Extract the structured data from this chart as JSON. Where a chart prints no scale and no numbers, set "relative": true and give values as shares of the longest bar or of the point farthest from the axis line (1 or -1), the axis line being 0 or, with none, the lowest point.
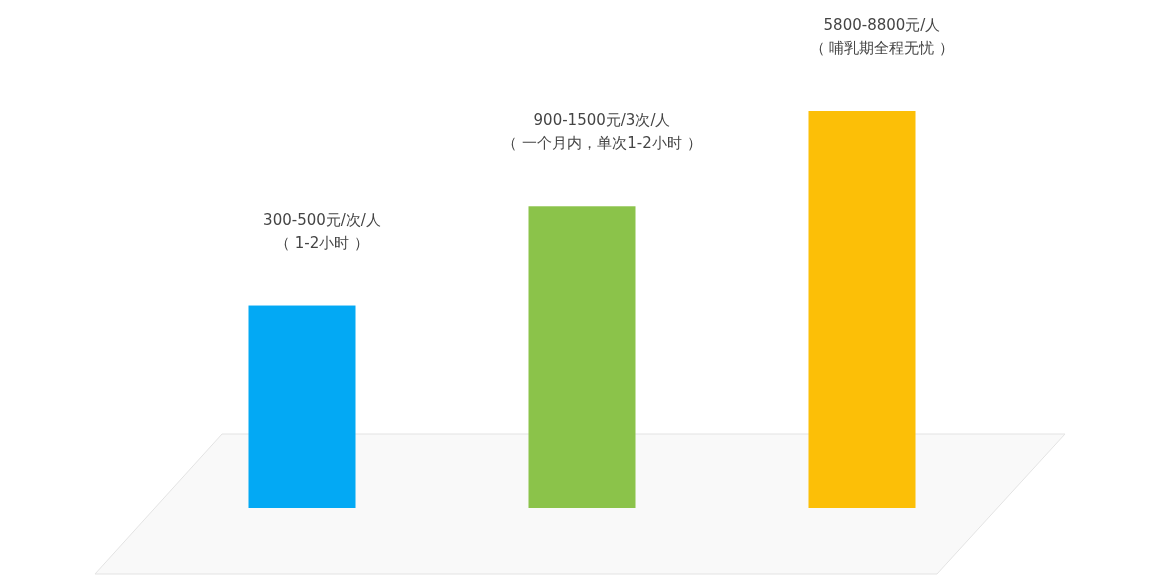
{
  "chart_data": {
    "type": "bar",
    "relative": true,
    "categories": [
      null,
      null,
      null
    ],
    "values": [
      0.51,
      0.76,
      1
    ],
    "colors": [
      "#03a9f4",
      "#8bc34a",
      "#fcbf07"
    ],
    "annotations": [
      "300-500元/次/人",
      "（ 1-2小时 ）",
      "900-1500元/3次/人",
      "（ 一个月内，单次1-2小时 ）",
      "5800-8800元/人",
      "（ 哺乳期全程无忧 ）"
    ]
  }
}
